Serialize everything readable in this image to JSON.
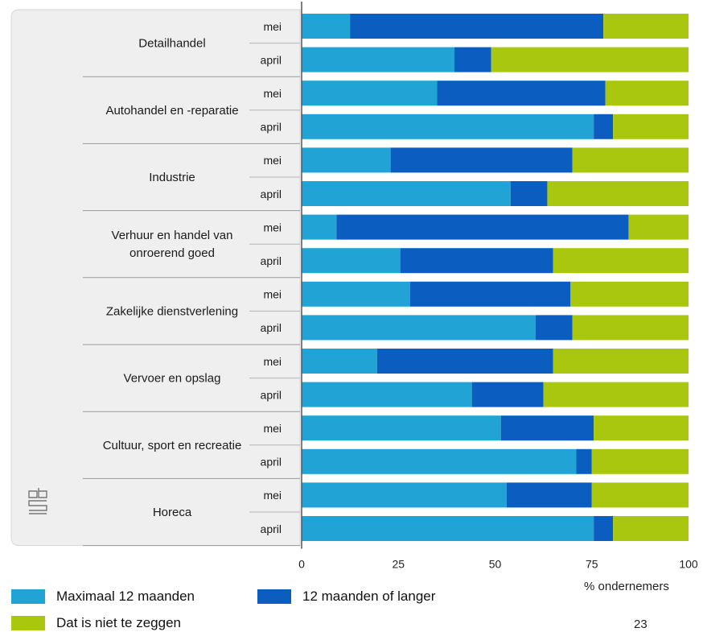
{
  "chart_data": {
    "type": "bar",
    "orientation": "horizontal",
    "stacked": true,
    "xlim": [
      0,
      100
    ],
    "xticks": [
      "0",
      "25",
      "50",
      "75",
      "100"
    ],
    "xlabel": "% ondernemers",
    "groups": [
      {
        "label": "Detailhandel",
        "rows": [
          {
            "label": "mei",
            "values": [
              12.5,
              65.5,
              22
            ]
          },
          {
            "label": "april",
            "values": [
              39.5,
              9.5,
              51
            ]
          }
        ]
      },
      {
        "label": "Autohandel en -reparatie",
        "rows": [
          {
            "label": "mei",
            "values": [
              35,
              43.5,
              21.5
            ]
          },
          {
            "label": "april",
            "values": [
              75.5,
              5,
              19.5
            ]
          }
        ]
      },
      {
        "label": "Industrie",
        "rows": [
          {
            "label": "mei",
            "values": [
              23,
              47,
              30
            ]
          },
          {
            "label": "april",
            "values": [
              54,
              9.5,
              36.5
            ]
          }
        ]
      },
      {
        "label": "Verhuur en handel van onroerend goed",
        "rows": [
          {
            "label": "mei",
            "values": [
              9,
              75.5,
              15.5
            ]
          },
          {
            "label": "april",
            "values": [
              25.5,
              39.5,
              35
            ]
          }
        ]
      },
      {
        "label": "Zakelijke dienstverlening",
        "rows": [
          {
            "label": "mei",
            "values": [
              28,
              41.5,
              30.5
            ]
          },
          {
            "label": "april",
            "values": [
              60.5,
              9.5,
              30
            ]
          }
        ]
      },
      {
        "label": "Vervoer en opslag",
        "rows": [
          {
            "label": "mei",
            "values": [
              19.5,
              45.5,
              35
            ]
          },
          {
            "label": "april",
            "values": [
              44,
              18.5,
              37.5
            ]
          }
        ]
      },
      {
        "label": "Cultuur, sport en recreatie",
        "rows": [
          {
            "label": "mei",
            "values": [
              51.5,
              24,
              24.5
            ]
          },
          {
            "label": "april",
            "values": [
              71,
              4,
              25
            ]
          }
        ]
      },
      {
        "label": "Horeca",
        "rows": [
          {
            "label": "mei",
            "values": [
              53,
              22,
              25
            ]
          },
          {
            "label": "april",
            "values": [
              75.5,
              5,
              19.5
            ]
          }
        ]
      }
    ],
    "series": [
      {
        "name": "Maximaal 12 maanden",
        "color": "#21a3d6"
      },
      {
        "name": "12 maanden of langer",
        "color": "#0b5ebf"
      },
      {
        "name": "Dat is niet te zeggen",
        "color": "#a9c70f"
      }
    ],
    "grid": false,
    "legend": "bottom"
  },
  "page_number": "23",
  "logo_text": "cbs"
}
